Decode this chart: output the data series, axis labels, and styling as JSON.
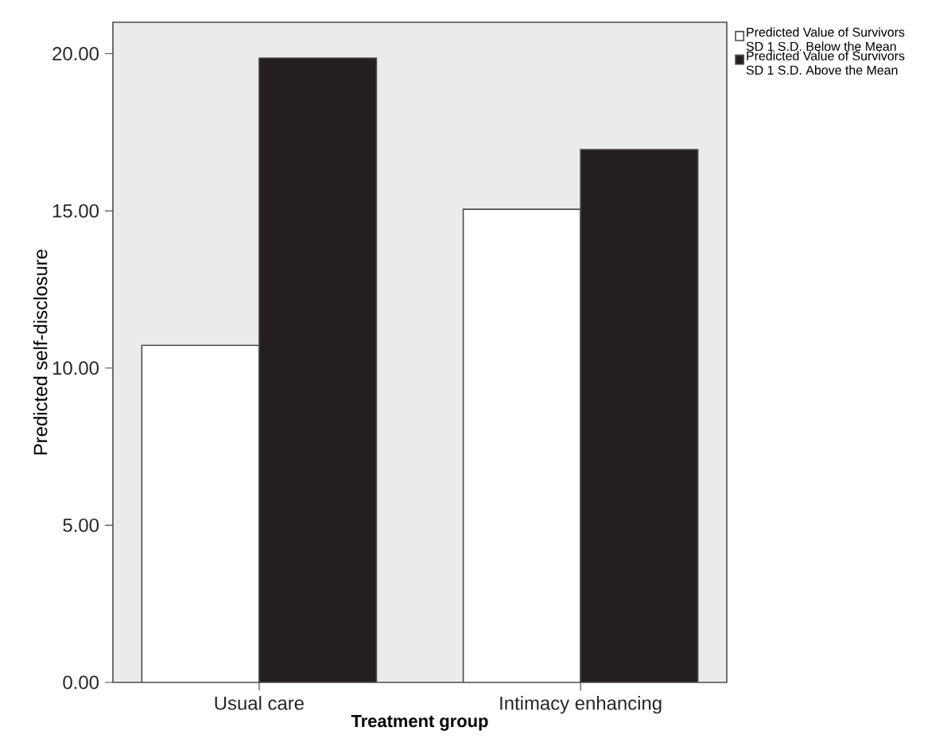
{
  "chart_data": {
    "type": "bar",
    "xlabel": "Treatment group",
    "ylabel": "Predicted self-disclosure",
    "categories": [
      "Usual care",
      "Intimacy enhancing"
    ],
    "series": [
      {
        "name": "Predicted Value of Survivors SD 1 S.D. Below the Mean",
        "color": "#ffffff",
        "values": [
          10.72,
          15.05
        ]
      },
      {
        "name": "Predicted Value of Survivors SD 1 S.D. Above the Mean",
        "color": "#231f20",
        "values": [
          19.86,
          16.95
        ]
      }
    ],
    "ylim": [
      0,
      21
    ],
    "yticks": [
      {
        "value": 0,
        "label": "0.00"
      },
      {
        "value": 5,
        "label": "5.00"
      },
      {
        "value": 10,
        "label": "10.00"
      },
      {
        "value": 15,
        "label": "15.00"
      },
      {
        "value": 20,
        "label": "20.00"
      }
    ],
    "grid": false,
    "legend": "top right"
  }
}
